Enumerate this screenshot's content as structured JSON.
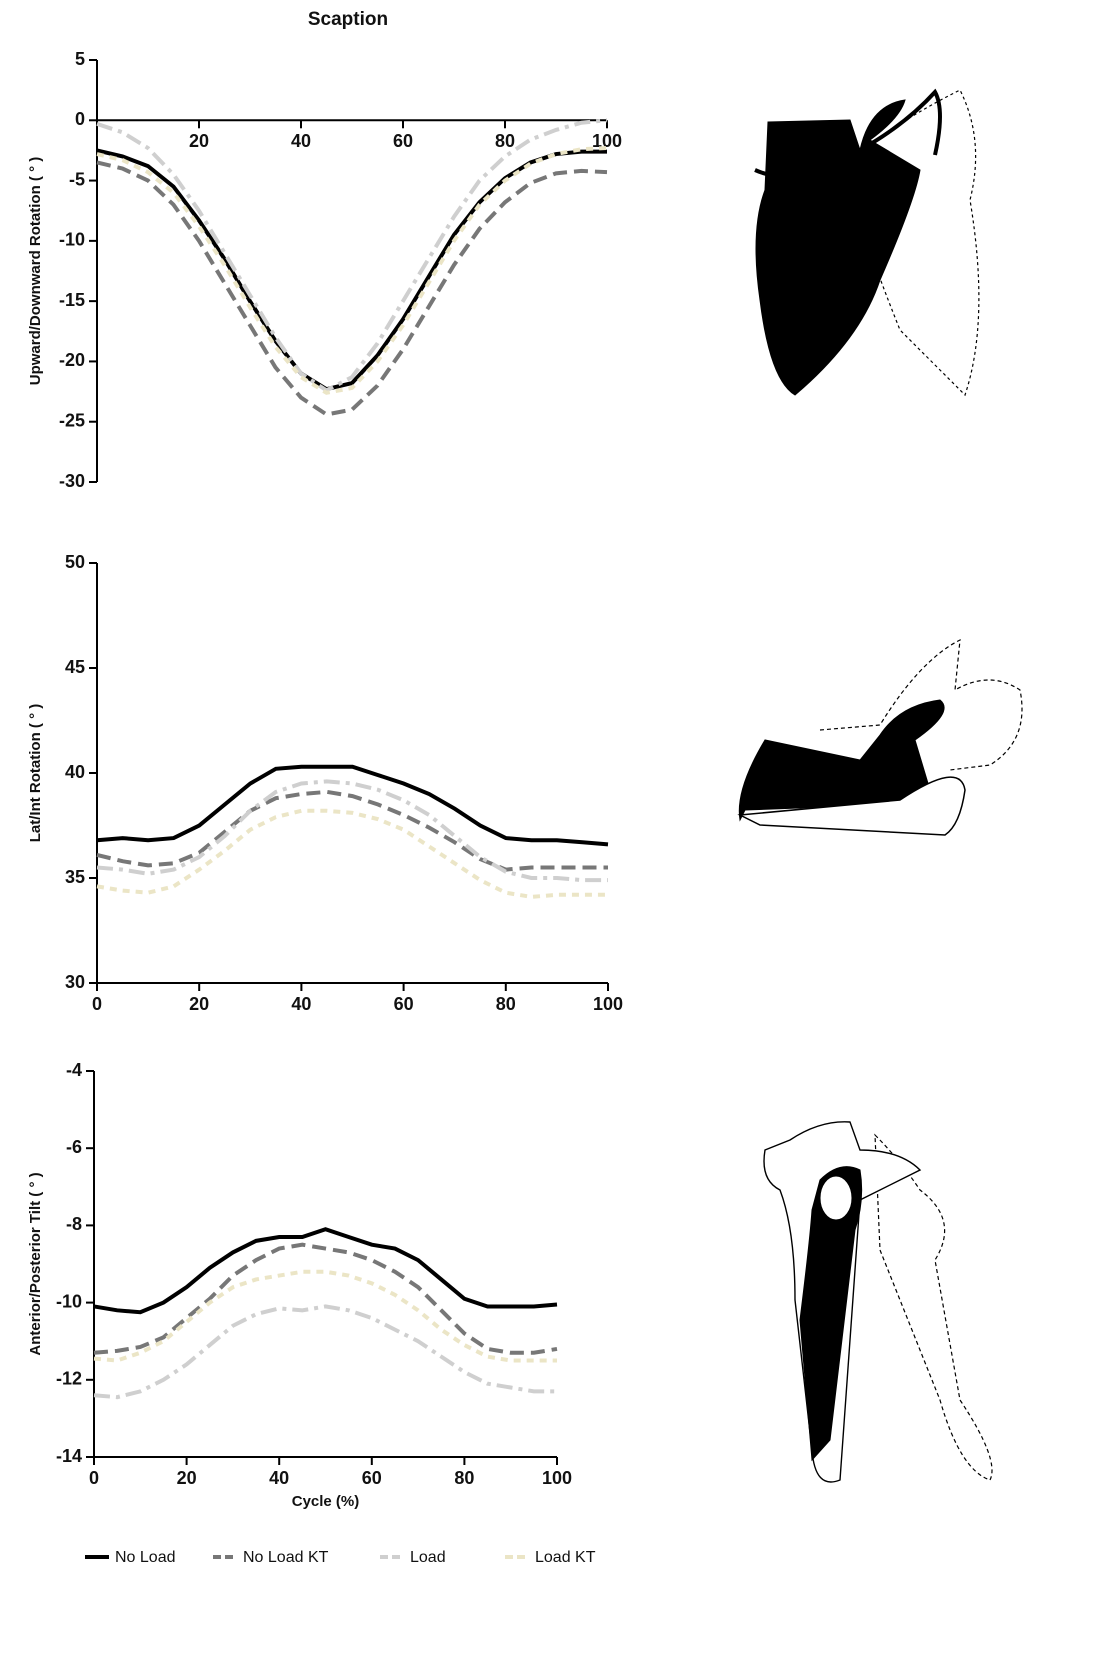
{
  "chart_data": [
    {
      "type": "line",
      "title": "Scaption",
      "y_label": "Upward/Downward Rotation ( ° )",
      "x": [
        0,
        5,
        10,
        15,
        20,
        25,
        30,
        35,
        40,
        45,
        50,
        55,
        60,
        65,
        70,
        75,
        80,
        85,
        90,
        95,
        100
      ],
      "xlim": [
        0,
        100
      ],
      "xticks": [
        20,
        40,
        60,
        80,
        100
      ],
      "ylim": [
        -30,
        5
      ],
      "yticks": [
        5,
        0,
        -5,
        -10,
        -15,
        -20,
        -25,
        -30
      ],
      "series": [
        {
          "name": "No Load",
          "color": "#000000",
          "dash": "none",
          "values": [
            -2.5,
            -3.0,
            -3.8,
            -5.5,
            -8.3,
            -11.5,
            -15,
            -18.3,
            -21,
            -22.3,
            -21.8,
            -19.5,
            -16.5,
            -13,
            -9.5,
            -6.8,
            -4.8,
            -3.5,
            -2.8,
            -2.6,
            -2.6
          ]
        },
        {
          "name": "No Load KT",
          "color": "#777777",
          "dash": "14 7",
          "values": [
            -3.5,
            -4,
            -5,
            -7,
            -10,
            -13.5,
            -17,
            -20.5,
            -23,
            -24.4,
            -24,
            -22,
            -19,
            -15.5,
            -12,
            -9,
            -6.8,
            -5.2,
            -4.4,
            -4.2,
            -4.3
          ]
        },
        {
          "name": "Load",
          "color": "#cfcfcf",
          "dash": "16 6 4 6",
          "values": [
            -0.3,
            -1,
            -2.3,
            -4.5,
            -7.5,
            -11,
            -14.5,
            -18,
            -21,
            -22.4,
            -21.3,
            -18.5,
            -15,
            -11.5,
            -8,
            -5,
            -3,
            -1.6,
            -0.8,
            -0.2,
            0
          ]
        },
        {
          "name": "Load KT",
          "color": "#ebe5c6",
          "dash": "7 6",
          "values": [
            -2.8,
            -3.3,
            -4.3,
            -6,
            -8.8,
            -12,
            -15.5,
            -18.8,
            -21.3,
            -22.6,
            -22.2,
            -20,
            -17,
            -13.5,
            -10,
            -7,
            -5,
            -3.6,
            -2.8,
            -2.4,
            -2.3
          ]
        }
      ]
    },
    {
      "type": "line",
      "y_label": "Lat/Int Rotation ( ° )",
      "x": [
        0,
        5,
        10,
        15,
        20,
        25,
        30,
        35,
        40,
        45,
        50,
        55,
        60,
        65,
        70,
        75,
        80,
        85,
        90,
        95,
        100
      ],
      "xlim": [
        0,
        100
      ],
      "xticks": [
        0,
        20,
        40,
        60,
        80,
        100
      ],
      "ylim": [
        30,
        50
      ],
      "yticks": [
        30,
        35,
        40,
        45,
        50
      ],
      "series": [
        {
          "color": "#000000",
          "dash": "none",
          "values": [
            36.8,
            36.9,
            36.8,
            36.9,
            37.5,
            38.5,
            39.5,
            40.2,
            40.3,
            40.3,
            40.3,
            39.9,
            39.5,
            39,
            38.3,
            37.5,
            36.9,
            36.8,
            36.8,
            36.7,
            36.6
          ]
        },
        {
          "color": "#777777",
          "dash": "14 7",
          "values": [
            36.1,
            35.8,
            35.6,
            35.7,
            36.2,
            37.2,
            38.2,
            38.8,
            39,
            39.1,
            38.9,
            38.5,
            38,
            37.4,
            36.7,
            35.9,
            35.4,
            35.5,
            35.5,
            35.5,
            35.5
          ]
        },
        {
          "color": "#cfcfcf",
          "dash": "16 6 4 6",
          "values": [
            35.5,
            35.4,
            35.2,
            35.4,
            36,
            37,
            38.2,
            39.1,
            39.5,
            39.6,
            39.5,
            39.2,
            38.7,
            38,
            37,
            36,
            35.3,
            35,
            35,
            34.9,
            34.9
          ]
        },
        {
          "color": "#ebe5c6",
          "dash": "7 6",
          "values": [
            34.6,
            34.4,
            34.3,
            34.6,
            35.4,
            36.3,
            37.3,
            37.9,
            38.2,
            38.2,
            38.1,
            37.8,
            37.3,
            36.5,
            35.7,
            34.9,
            34.3,
            34.1,
            34.2,
            34.2,
            34.2
          ]
        }
      ]
    },
    {
      "type": "line",
      "y_label": "Anterior/Posterior Tilt ( ° )",
      "x_label": "Cycle (%)",
      "x": [
        0,
        5,
        10,
        15,
        20,
        25,
        30,
        35,
        40,
        45,
        50,
        55,
        60,
        65,
        70,
        75,
        80,
        85,
        90,
        95,
        100
      ],
      "xlim": [
        0,
        100
      ],
      "xticks": [
        0,
        20,
        40,
        60,
        80,
        100
      ],
      "ylim": [
        -14,
        -4
      ],
      "yticks": [
        -4,
        -6,
        -8,
        -10,
        -12,
        -14
      ],
      "series": [
        {
          "color": "#000000",
          "dash": "none",
          "values": [
            -10.1,
            -10.2,
            -10.25,
            -10,
            -9.6,
            -9.1,
            -8.7,
            -8.4,
            -8.3,
            -8.3,
            -8.1,
            -8.3,
            -8.5,
            -8.6,
            -8.9,
            -9.4,
            -9.9,
            -10.1,
            -10.1,
            -10.1,
            -10.05
          ]
        },
        {
          "color": "#777777",
          "dash": "14 7",
          "values": [
            -11.3,
            -11.25,
            -11.15,
            -10.9,
            -10.4,
            -9.9,
            -9.3,
            -8.9,
            -8.6,
            -8.5,
            -8.6,
            -8.7,
            -8.9,
            -9.2,
            -9.6,
            -10.2,
            -10.8,
            -11.2,
            -11.3,
            -11.3,
            -11.2
          ]
        },
        {
          "color": "#cfcfcf",
          "dash": "16 6 4 6",
          "values": [
            -12.4,
            -12.45,
            -12.3,
            -12,
            -11.6,
            -11.1,
            -10.6,
            -10.3,
            -10.15,
            -10.2,
            -10.1,
            -10.2,
            -10.4,
            -10.7,
            -11,
            -11.4,
            -11.8,
            -12.1,
            -12.2,
            -12.3,
            -12.3
          ]
        },
        {
          "color": "#ebe5c6",
          "dash": "7 6",
          "values": [
            -11.45,
            -11.5,
            -11.3,
            -11,
            -10.5,
            -10,
            -9.6,
            -9.4,
            -9.3,
            -9.2,
            -9.2,
            -9.3,
            -9.5,
            -9.8,
            -10.2,
            -10.7,
            -11.1,
            -11.4,
            -11.5,
            -11.5,
            -11.5
          ]
        }
      ]
    }
  ]
}
